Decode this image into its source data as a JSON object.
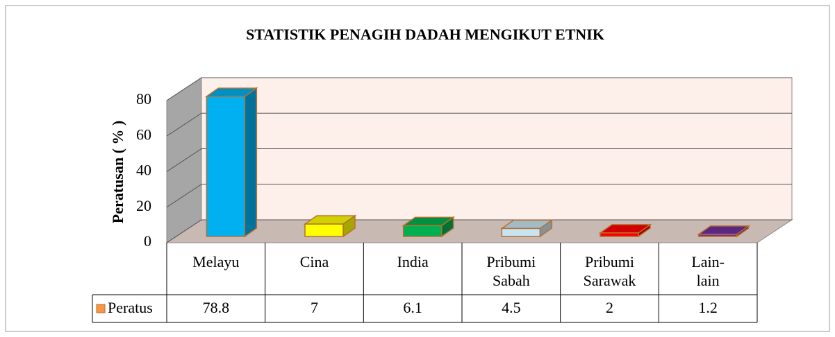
{
  "chart_data": {
    "type": "bar3d",
    "title": "STATISTIK PENAGIH DADAH MENGIKUT ETNIK",
    "y_label": "Peratusan ( % )",
    "categories": [
      [
        "Melayu"
      ],
      [
        "Cina"
      ],
      [
        "India"
      ],
      [
        "Pribumi",
        "Sabah"
      ],
      [
        "Pribumi",
        "Sarawak"
      ],
      [
        "Lain-",
        "lain"
      ]
    ],
    "series": [
      {
        "name": "Peratus",
        "color": "#f79646",
        "values": [
          78.8,
          7,
          6.1,
          4.5,
          2,
          1.2
        ],
        "bar_colors": [
          "#00b0f0",
          "#ffff00",
          "#00b050",
          "#c6e4f2",
          "#ff0000",
          "#7030a0"
        ]
      }
    ],
    "ylim": [
      0,
      80
    ],
    "yticks": [
      0,
      20,
      40,
      60,
      80
    ],
    "grid": true,
    "data_table": true
  }
}
